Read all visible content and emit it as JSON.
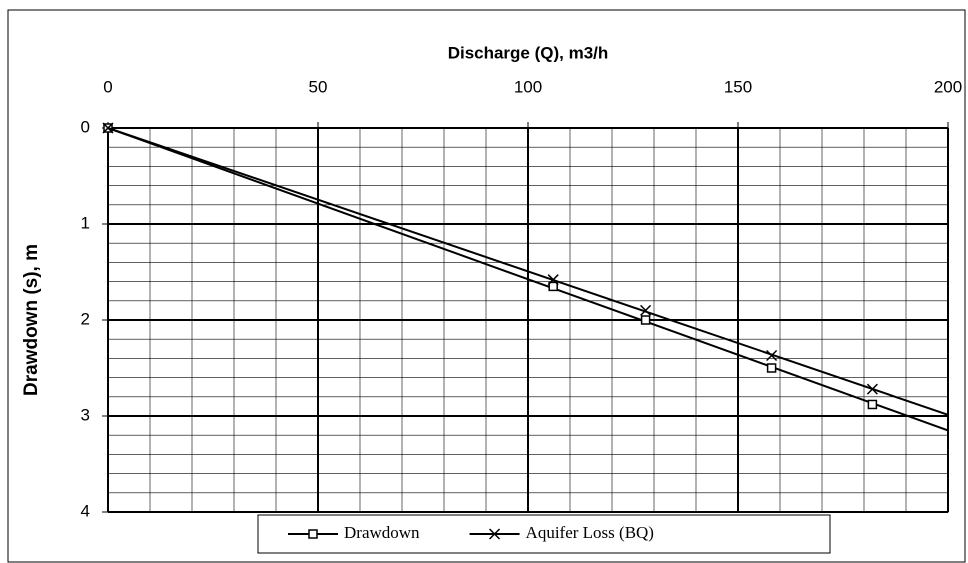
{
  "chart_data": {
    "type": "line",
    "title": "Discharge (Q), m3/h",
    "y_label": "Drawdown (s), m",
    "x_axis_position": "top",
    "y_inverted": true,
    "xlim": [
      0,
      200
    ],
    "xticks": [
      0,
      50,
      100,
      150,
      200
    ],
    "ylim": [
      0,
      4
    ],
    "yticks": [
      0,
      1,
      2,
      3,
      4
    ],
    "grid": true,
    "minor_grid": {
      "x": 10,
      "y": 0.2
    },
    "trendline": "linear-through-origin",
    "legend": "bottom",
    "series": [
      {
        "name": "Drawdown",
        "color": "#000000",
        "marker": "square",
        "x": [
          0,
          106,
          128,
          158,
          182
        ],
        "values": [
          0,
          1.65,
          2.0,
          2.5,
          2.88
        ]
      },
      {
        "name": "Aquifer Loss (BQ)",
        "color": "#000000",
        "marker": "x",
        "x": [
          0,
          106,
          128,
          158,
          182
        ],
        "values": [
          0,
          1.58,
          1.9,
          2.37,
          2.72
        ]
      }
    ]
  }
}
